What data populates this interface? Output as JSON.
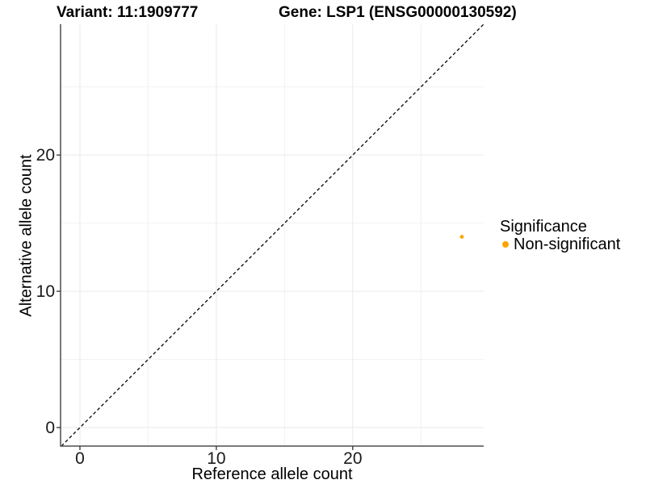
{
  "titles": {
    "variant": "Variant: 11:1909777",
    "gene": "Gene: LSP1 (ENSG00000130592)"
  },
  "chart_data": {
    "type": "scatter",
    "xlabel": "Reference allele count",
    "ylabel": "Alternative allele count",
    "xlim": [
      -1.42,
      29.6
    ],
    "ylim": [
      -1.36,
      29.6
    ],
    "xticks": [
      0,
      10,
      20
    ],
    "yticks": [
      0,
      10,
      20
    ],
    "x_minor": [
      5,
      15,
      25
    ],
    "y_minor": [
      5,
      15,
      25
    ],
    "grid": "major+minor",
    "identity_line": {
      "slope": 1,
      "intercept": 0,
      "style": "dashed",
      "color": "#000000"
    },
    "series": [
      {
        "name": "Non-significant",
        "color": "#FFA500",
        "point_radius": 2.4,
        "points": [
          {
            "x": 28,
            "y": 14
          }
        ]
      }
    ]
  },
  "legend": {
    "title": "Significance",
    "position": "right",
    "items": [
      {
        "label": "Non-significant",
        "color": "#FFA500"
      }
    ]
  },
  "colors": {
    "background": "#ffffff",
    "axis_line": "#4d4d4d",
    "tick_mark": "#333333",
    "grid_major": "#eaeaea",
    "grid_minor": "#f2f2f2",
    "text": "#000000"
  }
}
